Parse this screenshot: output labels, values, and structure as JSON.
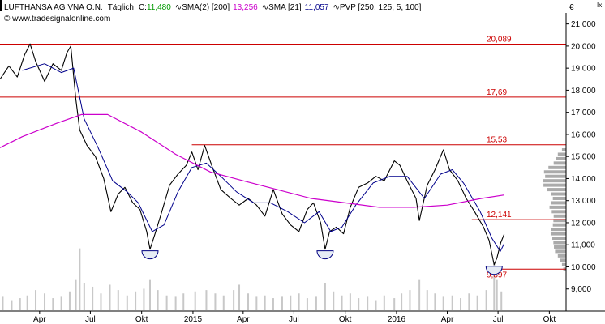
{
  "header": {
    "instrument": "LUFTHANSA AG VNA O.N.",
    "interval": "Täglich",
    "close_label": "C:",
    "close_value": "11,480",
    "sma200_label": "SMA(2) [200]",
    "sma200_value": "13,256",
    "sma21_label": "SMA [21]",
    "sma21_value": "11,057",
    "pvp_label": "PVP [250, 125, 5, 100]",
    "website": "© www.tradesignalonline.com",
    "currency": "€",
    "corner_mark": "Ix"
  },
  "colors": {
    "price": "#000000",
    "sma200": "#cc00cc",
    "sma21": "#00008b",
    "level": "#cc0000",
    "volume": "#c8c8c8",
    "profile": "#aaaaaa",
    "close_value": "#009900",
    "sma200_value": "#cc00cc",
    "sma21_value": "#00008b"
  },
  "chart_data": {
    "type": "line",
    "instrument": "LUFTHANSA AG VNA O.N.",
    "ylim": [
      8000,
      21500
    ],
    "y_ticks": [
      9000,
      10000,
      11000,
      12000,
      13000,
      14000,
      15000,
      16000,
      17000,
      18000,
      19000,
      20000,
      21000
    ],
    "y_tick_labels": [
      "9,000",
      "10,000",
      "11,000",
      "12,000",
      "13,000",
      "14,000",
      "15,000",
      "16,000",
      "17,000",
      "18,000",
      "19,000",
      "20,000",
      "21,000"
    ],
    "x_start": "2014-01-20",
    "x_end": "2016-10-31",
    "x_ticks": [
      {
        "date": "2014-04-01",
        "label": "Apr"
      },
      {
        "date": "2014-07-01",
        "label": "Jul"
      },
      {
        "date": "2014-10-01",
        "label": "Okt"
      },
      {
        "date": "2015-01-01",
        "label": "2015"
      },
      {
        "date": "2015-04-01",
        "label": "Apr"
      },
      {
        "date": "2015-07-01",
        "label": "Jul"
      },
      {
        "date": "2015-10-01",
        "label": "Okt"
      },
      {
        "date": "2016-01-01",
        "label": "2016"
      },
      {
        "date": "2016-04-01",
        "label": "Apr"
      },
      {
        "date": "2016-07-01",
        "label": "Jul"
      },
      {
        "date": "2016-10-01",
        "label": "Okt"
      }
    ],
    "levels": [
      {
        "value": 20089,
        "label": "20,089",
        "from": "2014-01-20"
      },
      {
        "value": 17690,
        "label": "17,69",
        "from": "2014-01-20"
      },
      {
        "value": 15530,
        "label": "15,53",
        "from": "2014-12-30"
      },
      {
        "value": 12141,
        "label": "12,141",
        "from": "2016-05-15"
      },
      {
        "value": 9897,
        "label": "9,897",
        "from": "2016-06-25"
      }
    ],
    "series": [
      {
        "name": "LUFTHANSA AG VNA O.N.",
        "points": [
          [
            "2014-01-20",
            18500
          ],
          [
            "2014-02-05",
            19100
          ],
          [
            "2014-02-20",
            18600
          ],
          [
            "2014-03-05",
            19600
          ],
          [
            "2014-03-15",
            20100
          ],
          [
            "2014-03-25",
            19300
          ],
          [
            "2014-04-10",
            18400
          ],
          [
            "2014-04-25",
            19200
          ],
          [
            "2014-05-10",
            18900
          ],
          [
            "2014-05-20",
            19700
          ],
          [
            "2014-05-27",
            20000
          ],
          [
            "2014-06-05",
            17600
          ],
          [
            "2014-06-12",
            16200
          ],
          [
            "2014-06-25",
            15500
          ],
          [
            "2014-07-10",
            15000
          ],
          [
            "2014-07-25",
            14000
          ],
          [
            "2014-08-07",
            12500
          ],
          [
            "2014-08-20",
            13300
          ],
          [
            "2014-09-01",
            13600
          ],
          [
            "2014-09-15",
            12900
          ],
          [
            "2014-09-28",
            12600
          ],
          [
            "2014-10-10",
            11600
          ],
          [
            "2014-10-16",
            10800
          ],
          [
            "2014-10-25",
            11500
          ],
          [
            "2014-11-05",
            12400
          ],
          [
            "2014-11-20",
            13700
          ],
          [
            "2014-12-05",
            14200
          ],
          [
            "2014-12-20",
            14600
          ],
          [
            "2014-12-30",
            15200
          ],
          [
            "2015-01-10",
            14400
          ],
          [
            "2015-01-22",
            15500
          ],
          [
            "2015-02-05",
            14500
          ],
          [
            "2015-02-20",
            13500
          ],
          [
            "2015-03-10",
            13100
          ],
          [
            "2015-03-25",
            12800
          ],
          [
            "2015-04-10",
            13100
          ],
          [
            "2015-04-25",
            12800
          ],
          [
            "2015-05-10",
            12300
          ],
          [
            "2015-05-25",
            13500
          ],
          [
            "2015-06-10",
            12400
          ],
          [
            "2015-06-25",
            11900
          ],
          [
            "2015-07-10",
            11600
          ],
          [
            "2015-07-25",
            12600
          ],
          [
            "2015-08-05",
            12900
          ],
          [
            "2015-08-18",
            12000
          ],
          [
            "2015-08-26",
            10800
          ],
          [
            "2015-09-03",
            11600
          ],
          [
            "2015-09-15",
            11800
          ],
          [
            "2015-09-28",
            11500
          ],
          [
            "2015-10-10",
            12700
          ],
          [
            "2015-10-25",
            13600
          ],
          [
            "2015-11-10",
            13800
          ],
          [
            "2015-11-25",
            14100
          ],
          [
            "2015-12-10",
            13900
          ],
          [
            "2015-12-28",
            14800
          ],
          [
            "2016-01-07",
            14600
          ],
          [
            "2016-01-20",
            13900
          ],
          [
            "2016-02-05",
            13100
          ],
          [
            "2016-02-11",
            12100
          ],
          [
            "2016-02-25",
            13700
          ],
          [
            "2016-03-10",
            14400
          ],
          [
            "2016-03-25",
            15300
          ],
          [
            "2016-04-05",
            14400
          ],
          [
            "2016-04-20",
            13900
          ],
          [
            "2016-05-05",
            13100
          ],
          [
            "2016-05-20",
            12500
          ],
          [
            "2016-06-05",
            11800
          ],
          [
            "2016-06-15",
            11200
          ],
          [
            "2016-06-24",
            10100
          ],
          [
            "2016-06-29",
            10400
          ],
          [
            "2016-07-06",
            11100
          ],
          [
            "2016-07-12",
            11480
          ]
        ]
      },
      {
        "name": "SMA [21]",
        "points": [
          [
            "2014-03-01",
            18900
          ],
          [
            "2014-04-10",
            19200
          ],
          [
            "2014-05-10",
            18800
          ],
          [
            "2014-06-01",
            19000
          ],
          [
            "2014-06-20",
            16700
          ],
          [
            "2014-07-15",
            15400
          ],
          [
            "2014-08-10",
            13900
          ],
          [
            "2014-09-05",
            13400
          ],
          [
            "2014-09-25",
            12900
          ],
          [
            "2014-10-20",
            11600
          ],
          [
            "2014-11-10",
            11900
          ],
          [
            "2014-12-05",
            13400
          ],
          [
            "2014-12-30",
            14500
          ],
          [
            "2015-01-25",
            14700
          ],
          [
            "2015-02-20",
            14100
          ],
          [
            "2015-03-20",
            13400
          ],
          [
            "2015-04-20",
            12900
          ],
          [
            "2015-05-20",
            12900
          ],
          [
            "2015-06-20",
            12500
          ],
          [
            "2015-07-20",
            12000
          ],
          [
            "2015-08-15",
            12500
          ],
          [
            "2015-09-05",
            11600
          ],
          [
            "2015-09-25",
            11800
          ],
          [
            "2015-10-20",
            12800
          ],
          [
            "2015-11-20",
            13800
          ],
          [
            "2015-12-20",
            14100
          ],
          [
            "2016-01-20",
            14100
          ],
          [
            "2016-02-20",
            13100
          ],
          [
            "2016-03-20",
            14200
          ],
          [
            "2016-04-10",
            14400
          ],
          [
            "2016-04-30",
            13800
          ],
          [
            "2016-05-30",
            12500
          ],
          [
            "2016-06-20",
            11300
          ],
          [
            "2016-07-05",
            10700
          ],
          [
            "2016-07-12",
            11057
          ]
        ]
      },
      {
        "name": "SMA(2) [200]",
        "points": [
          [
            "2014-01-20",
            15400
          ],
          [
            "2014-03-01",
            15900
          ],
          [
            "2014-05-01",
            16500
          ],
          [
            "2014-06-15",
            16900
          ],
          [
            "2014-08-01",
            16900
          ],
          [
            "2014-10-01",
            16100
          ],
          [
            "2014-12-01",
            15100
          ],
          [
            "2015-02-01",
            14300
          ],
          [
            "2015-04-01",
            13900
          ],
          [
            "2015-06-01",
            13500
          ],
          [
            "2015-08-01",
            13100
          ],
          [
            "2015-10-01",
            12900
          ],
          [
            "2015-12-01",
            12700
          ],
          [
            "2016-02-01",
            12700
          ],
          [
            "2016-04-01",
            12800
          ],
          [
            "2016-06-01",
            13100
          ],
          [
            "2016-07-12",
            13256
          ]
        ]
      }
    ],
    "volume": {
      "max": 100,
      "bars": [
        [
          "2014-01-25",
          20
        ],
        [
          "2014-02-10",
          15
        ],
        [
          "2014-02-25",
          18
        ],
        [
          "2014-03-10",
          22
        ],
        [
          "2014-03-25",
          30
        ],
        [
          "2014-04-10",
          25
        ],
        [
          "2014-04-25",
          18
        ],
        [
          "2014-05-10",
          20
        ],
        [
          "2014-05-25",
          28
        ],
        [
          "2014-06-05",
          45
        ],
        [
          "2014-06-12",
          92
        ],
        [
          "2014-06-20",
          40
        ],
        [
          "2014-07-05",
          35
        ],
        [
          "2014-07-20",
          25
        ],
        [
          "2014-08-05",
          38
        ],
        [
          "2014-08-20",
          30
        ],
        [
          "2014-09-05",
          22
        ],
        [
          "2014-09-20",
          28
        ],
        [
          "2014-10-05",
          32
        ],
        [
          "2014-10-16",
          45
        ],
        [
          "2014-10-30",
          30
        ],
        [
          "2014-11-15",
          22
        ],
        [
          "2014-12-01",
          20
        ],
        [
          "2014-12-15",
          25
        ],
        [
          "2015-01-05",
          28
        ],
        [
          "2015-01-25",
          30
        ],
        [
          "2015-02-10",
          25
        ],
        [
          "2015-02-25",
          22
        ],
        [
          "2015-03-15",
          30
        ],
        [
          "2015-03-25",
          38
        ],
        [
          "2015-04-10",
          25
        ],
        [
          "2015-04-25",
          20
        ],
        [
          "2015-05-10",
          22
        ],
        [
          "2015-05-25",
          18
        ],
        [
          "2015-06-10",
          20
        ],
        [
          "2015-06-25",
          22
        ],
        [
          "2015-07-10",
          25
        ],
        [
          "2015-07-25",
          18
        ],
        [
          "2015-08-10",
          20
        ],
        [
          "2015-08-26",
          40
        ],
        [
          "2015-09-10",
          28
        ],
        [
          "2015-09-25",
          22
        ],
        [
          "2015-10-10",
          25
        ],
        [
          "2015-10-25",
          18
        ],
        [
          "2015-11-10",
          20
        ],
        [
          "2015-11-25",
          15
        ],
        [
          "2015-12-10",
          22
        ],
        [
          "2015-12-28",
          18
        ],
        [
          "2016-01-10",
          25
        ],
        [
          "2016-01-25",
          30
        ],
        [
          "2016-02-11",
          45
        ],
        [
          "2016-02-25",
          30
        ],
        [
          "2016-03-10",
          25
        ],
        [
          "2016-03-25",
          20
        ],
        [
          "2016-04-10",
          22
        ],
        [
          "2016-04-25",
          18
        ],
        [
          "2016-05-10",
          25
        ],
        [
          "2016-05-25",
          22
        ],
        [
          "2016-06-10",
          30
        ],
        [
          "2016-06-24",
          72
        ],
        [
          "2016-06-29",
          45
        ],
        [
          "2016-07-07",
          28
        ]
      ]
    },
    "volume_profile": {
      "max": 100,
      "bins": [
        [
          9900,
          10
        ],
        [
          10100,
          15
        ],
        [
          10300,
          22
        ],
        [
          10500,
          30
        ],
        [
          10700,
          40
        ],
        [
          10900,
          44
        ],
        [
          11100,
          46
        ],
        [
          11300,
          50
        ],
        [
          11500,
          56
        ],
        [
          11700,
          55
        ],
        [
          11900,
          48
        ],
        [
          12100,
          46
        ],
        [
          12300,
          45
        ],
        [
          12500,
          52
        ],
        [
          12700,
          60
        ],
        [
          12900,
          56
        ],
        [
          13100,
          48
        ],
        [
          13300,
          55
        ],
        [
          13500,
          68
        ],
        [
          13700,
          82
        ],
        [
          13900,
          85
        ],
        [
          14100,
          76
        ],
        [
          14300,
          80
        ],
        [
          14500,
          64
        ],
        [
          14700,
          45
        ],
        [
          14900,
          38
        ],
        [
          15100,
          30
        ],
        [
          15300,
          15
        ]
      ]
    }
  }
}
